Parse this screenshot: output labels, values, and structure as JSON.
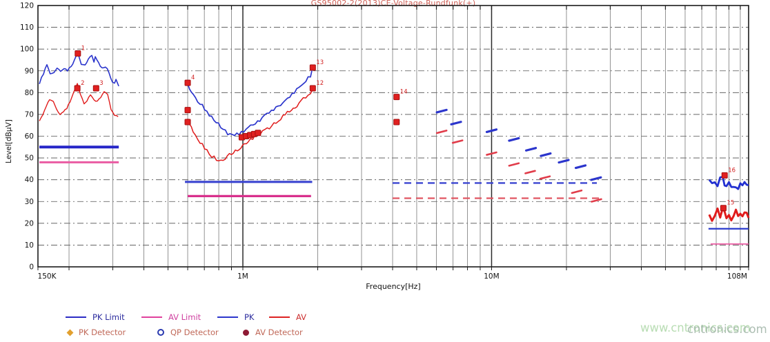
{
  "colors": {
    "title": "#cf5f55",
    "axis_text": "#111111",
    "pk_trace": "#2b35cc",
    "av_trace": "#e01b1b",
    "marker_fill": "#e02020",
    "marker_edge": "#a50f0f",
    "marker_label": "#d22222",
    "watermark_green": "#b9ddb4",
    "watermark_gray": "#9fb3a6"
  },
  "chart_data": {
    "type": "line",
    "title": "GS95002-2(2013)CE-Voltage-Rundfunk(+)",
    "xlabel": "Frequency[Hz]",
    "ylabel": "Level[dBµV]",
    "x_scale": "log",
    "x_range_mhz": [
      0.15,
      108
    ],
    "ylim": [
      0,
      120
    ],
    "grid": "on",
    "legend_position": "bottom-left",
    "x_ticks": [
      {
        "mhz": 0.15,
        "label": "150K"
      },
      {
        "mhz": 1,
        "label": "1M"
      },
      {
        "mhz": 10,
        "label": "10M"
      },
      {
        "mhz": 108,
        "label": "108M"
      }
    ],
    "y_ticks": [
      0,
      10,
      20,
      30,
      40,
      50,
      60,
      70,
      80,
      90,
      100,
      110,
      120
    ],
    "x_grid_mhz": [
      0.2,
      0.3,
      0.4,
      0.5,
      0.6,
      0.7,
      0.8,
      0.9,
      1,
      2,
      3,
      4,
      5,
      6,
      7,
      8,
      9,
      10,
      20,
      30,
      40,
      50,
      60,
      70,
      80,
      90,
      100
    ],
    "series": [
      {
        "name": "PK trace LW band",
        "color": "#2b35cc",
        "style": "line",
        "width": 1.6,
        "noise_db": 0.5,
        "points": [
          [
            0.152,
            84
          ],
          [
            0.158,
            89
          ],
          [
            0.163,
            93
          ],
          [
            0.168,
            89
          ],
          [
            0.174,
            89
          ],
          [
            0.179,
            91
          ],
          [
            0.185,
            90
          ],
          [
            0.191,
            91
          ],
          [
            0.197,
            90
          ],
          [
            0.204,
            92
          ],
          [
            0.21,
            95
          ],
          [
            0.217,
            98
          ],
          [
            0.221,
            95
          ],
          [
            0.224,
            93
          ],
          [
            0.232,
            93
          ],
          [
            0.239,
            95
          ],
          [
            0.247,
            97
          ],
          [
            0.252,
            94
          ],
          [
            0.255,
            97
          ],
          [
            0.263,
            94
          ],
          [
            0.272,
            91
          ],
          [
            0.28,
            92
          ],
          [
            0.29,
            89
          ],
          [
            0.299,
            85
          ],
          [
            0.305,
            84
          ],
          [
            0.309,
            86
          ],
          [
            0.317,
            83
          ]
        ]
      },
      {
        "name": "AV trace LW band",
        "color": "#e01b1b",
        "style": "line",
        "width": 1.4,
        "noise_db": 0.5,
        "points": [
          [
            0.152,
            67
          ],
          [
            0.157,
            70
          ],
          [
            0.162,
            74
          ],
          [
            0.167,
            77
          ],
          [
            0.173,
            76
          ],
          [
            0.178,
            72
          ],
          [
            0.184,
            70
          ],
          [
            0.19,
            71
          ],
          [
            0.196,
            73
          ],
          [
            0.202,
            76
          ],
          [
            0.209,
            80
          ],
          [
            0.216,
            84
          ],
          [
            0.222,
            79
          ],
          [
            0.23,
            75
          ],
          [
            0.236,
            76
          ],
          [
            0.244,
            79
          ],
          [
            0.252,
            77
          ],
          [
            0.26,
            76
          ],
          [
            0.268,
            78
          ],
          [
            0.277,
            80
          ],
          [
            0.286,
            79
          ],
          [
            0.295,
            72
          ],
          [
            0.305,
            70
          ],
          [
            0.315,
            69
          ]
        ]
      },
      {
        "name": "PK trace MW band",
        "color": "#2b35cc",
        "style": "line",
        "width": 1.7,
        "noise_db": 0.9,
        "points": [
          [
            0.6,
            84
          ],
          [
            0.631,
            79
          ],
          [
            0.673,
            75
          ],
          [
            0.717,
            71
          ],
          [
            0.765,
            68
          ],
          [
            0.815,
            64
          ],
          [
            0.869,
            61
          ],
          [
            0.926,
            60
          ],
          [
            0.987,
            62
          ],
          [
            1.052,
            64
          ],
          [
            1.122,
            66
          ],
          [
            1.196,
            68.5
          ],
          [
            1.275,
            70.5
          ],
          [
            1.359,
            73
          ],
          [
            1.448,
            75.5
          ],
          [
            1.544,
            78
          ],
          [
            1.646,
            81
          ],
          [
            1.754,
            84
          ],
          [
            1.87,
            88
          ],
          [
            1.906,
            91.5
          ]
        ]
      },
      {
        "name": "AV trace MW band",
        "color": "#e01b1b",
        "style": "line",
        "width": 1.5,
        "noise_db": 0.9,
        "points": [
          [
            0.6,
            68
          ],
          [
            0.631,
            62
          ],
          [
            0.673,
            57
          ],
          [
            0.717,
            53
          ],
          [
            0.75,
            50.5
          ],
          [
            0.8,
            49
          ],
          [
            0.85,
            50
          ],
          [
            0.9,
            52
          ],
          [
            0.95,
            54
          ],
          [
            1.0,
            56
          ],
          [
            1.05,
            58
          ],
          [
            1.12,
            60
          ],
          [
            1.2,
            62
          ],
          [
            1.28,
            64
          ],
          [
            1.36,
            66
          ],
          [
            1.45,
            69
          ],
          [
            1.54,
            71.5
          ],
          [
            1.65,
            74
          ],
          [
            1.75,
            77
          ],
          [
            1.87,
            80
          ],
          [
            1.906,
            81.5
          ]
        ]
      },
      {
        "name": "PK short-wave bands",
        "color": "#2b35cc",
        "style": "dashes",
        "width": 3.2,
        "points": [
          [
            6.3,
            71.5
          ],
          [
            7.2,
            66
          ],
          [
            10,
            62.5
          ],
          [
            12.3,
            58.5
          ],
          [
            14.4,
            54
          ],
          [
            16.5,
            51.5
          ],
          [
            19.5,
            48.5
          ],
          [
            22.8,
            46
          ],
          [
            26.3,
            40.5
          ]
        ]
      },
      {
        "name": "AV short-wave bands",
        "color": "#e13c4a",
        "style": "dashes",
        "width": 2.6,
        "points": [
          [
            6.3,
            62
          ],
          [
            7.3,
            57.5
          ],
          [
            10,
            52
          ],
          [
            12.3,
            47
          ],
          [
            14.3,
            43.5
          ],
          [
            16.4,
            41
          ],
          [
            22.0,
            34.5
          ],
          [
            26.4,
            30.5
          ]
        ]
      },
      {
        "name": "PK trace FM band",
        "color": "#2230d0",
        "style": "line",
        "width": 2.8,
        "noise_db": 1.7,
        "points": [
          [
            75,
            40
          ],
          [
            77,
            37.5
          ],
          [
            79,
            39
          ],
          [
            81,
            38
          ],
          [
            83,
            40
          ],
          [
            85,
            41
          ],
          [
            86.5,
            39
          ],
          [
            88,
            37.5
          ],
          [
            90,
            38.5
          ],
          [
            92,
            36.5
          ],
          [
            94,
            37.5
          ],
          [
            96,
            38
          ],
          [
            98,
            36.5
          ],
          [
            100,
            37.5
          ],
          [
            102,
            36
          ],
          [
            104,
            38
          ],
          [
            106,
            37
          ],
          [
            108,
            37.5
          ]
        ]
      },
      {
        "name": "AV trace FM band",
        "color": "#e01b1b",
        "style": "line",
        "width": 3.0,
        "noise_db": 1.7,
        "points": [
          [
            75,
            24
          ],
          [
            77,
            22
          ],
          [
            79,
            25
          ],
          [
            81,
            26
          ],
          [
            83,
            24
          ],
          [
            85,
            26
          ],
          [
            86.5,
            25
          ],
          [
            88,
            23
          ],
          [
            90,
            24
          ],
          [
            92,
            22
          ],
          [
            94,
            23
          ],
          [
            96,
            25
          ],
          [
            98,
            24
          ],
          [
            100,
            24.5
          ],
          [
            102,
            23
          ],
          [
            104,
            25.5
          ],
          [
            106,
            24
          ],
          [
            108,
            22.5
          ]
        ]
      }
    ],
    "limit_segments": [
      {
        "name": "PK Limit LW",
        "color": "#2626c8",
        "dash": false,
        "width": 4.0,
        "f1": 0.152,
        "f2": 0.317,
        "level": 55
      },
      {
        "name": "AV Limit LW",
        "color": "#ea5ba2",
        "dash": false,
        "width": 3.0,
        "f1": 0.152,
        "f2": 0.317,
        "level": 48
      },
      {
        "name": "PK Limit MW",
        "color": "#3a44d0",
        "dash": false,
        "width": 3.2,
        "f1": 0.585,
        "f2": 1.9,
        "level": 39
      },
      {
        "name": "AV Limit MW",
        "color": "#d8308c",
        "dash": false,
        "width": 3.2,
        "f1": 0.6,
        "f2": 1.88,
        "level": 32.5
      },
      {
        "name": "PK Limit SW",
        "color": "#3a44d0",
        "dash": true,
        "width": 2.4,
        "f1": 4.0,
        "f2": 26.5,
        "level": 38.5
      },
      {
        "name": "AV Limit SW",
        "color": "#e05560",
        "dash": true,
        "width": 2.2,
        "f1": 4.0,
        "f2": 28.0,
        "level": 31.5
      },
      {
        "name": "PK Limit FM",
        "color": "#2838cc",
        "dash": false,
        "width": 2.2,
        "f1": 74.5,
        "f2": 108,
        "level": 17.5
      },
      {
        "name": "AV Limit FM",
        "color": "#ea5ba2",
        "dash": false,
        "width": 1.8,
        "f1": 76,
        "f2": 108,
        "level": 10.5
      }
    ],
    "markers": [
      {
        "f": 0.217,
        "level": 98,
        "label": "1"
      },
      {
        "f": 0.216,
        "level": 82,
        "label": "2"
      },
      {
        "f": 0.257,
        "level": 82,
        "label": "3"
      },
      {
        "f": 0.6,
        "level": 84.5,
        "label": "4"
      },
      {
        "f": 0.6,
        "level": 72,
        "label": ""
      },
      {
        "f": 0.6,
        "level": 66.5,
        "label": ""
      },
      {
        "f": 0.99,
        "level": 59.5,
        "label": ""
      },
      {
        "f": 1.03,
        "level": 60,
        "label": ""
      },
      {
        "f": 1.07,
        "level": 60.5,
        "label": ""
      },
      {
        "f": 1.11,
        "level": 61,
        "label": ""
      },
      {
        "f": 1.15,
        "level": 61.5,
        "label": ""
      },
      {
        "f": 1.91,
        "level": 82,
        "label": "12"
      },
      {
        "f": 1.91,
        "level": 91.5,
        "label": "13"
      },
      {
        "f": 4.15,
        "level": 78,
        "label": "14"
      },
      {
        "f": 4.15,
        "level": 66.5,
        "label": ""
      },
      {
        "f": 85.5,
        "level": 27,
        "label": "15"
      },
      {
        "f": 86.5,
        "level": 42,
        "label": "16"
      }
    ]
  },
  "legend": {
    "row1": [
      {
        "label": "PK Limit",
        "swatch": "#2b2bc4",
        "text_color": "#2b2b9e"
      },
      {
        "label": "AV Limit",
        "swatch": "#e0409c",
        "text_color": "#cf3f9f"
      },
      {
        "label": "PK",
        "swatch": "#2b35cc",
        "text_color": "#2b2b9e"
      },
      {
        "label": "AV",
        "swatch": "#dd2222",
        "text_color": "#cc2f2f"
      }
    ],
    "row2": [
      {
        "label": "PK Detector",
        "symbol": "diamond",
        "symbol_color": "#e2a02e",
        "text_color": "#c06858"
      },
      {
        "label": "QP Detector",
        "symbol": "open-circle",
        "symbol_color": "#2a3ab0",
        "text_color": "#c06858"
      },
      {
        "label": "AV Detector",
        "symbol": "filled-circle",
        "symbol_color": "#8e1a34",
        "text_color": "#c06858"
      }
    ]
  },
  "watermark": {
    "primary": "www.cntronics.com",
    "overlap": "cntronics.com"
  }
}
